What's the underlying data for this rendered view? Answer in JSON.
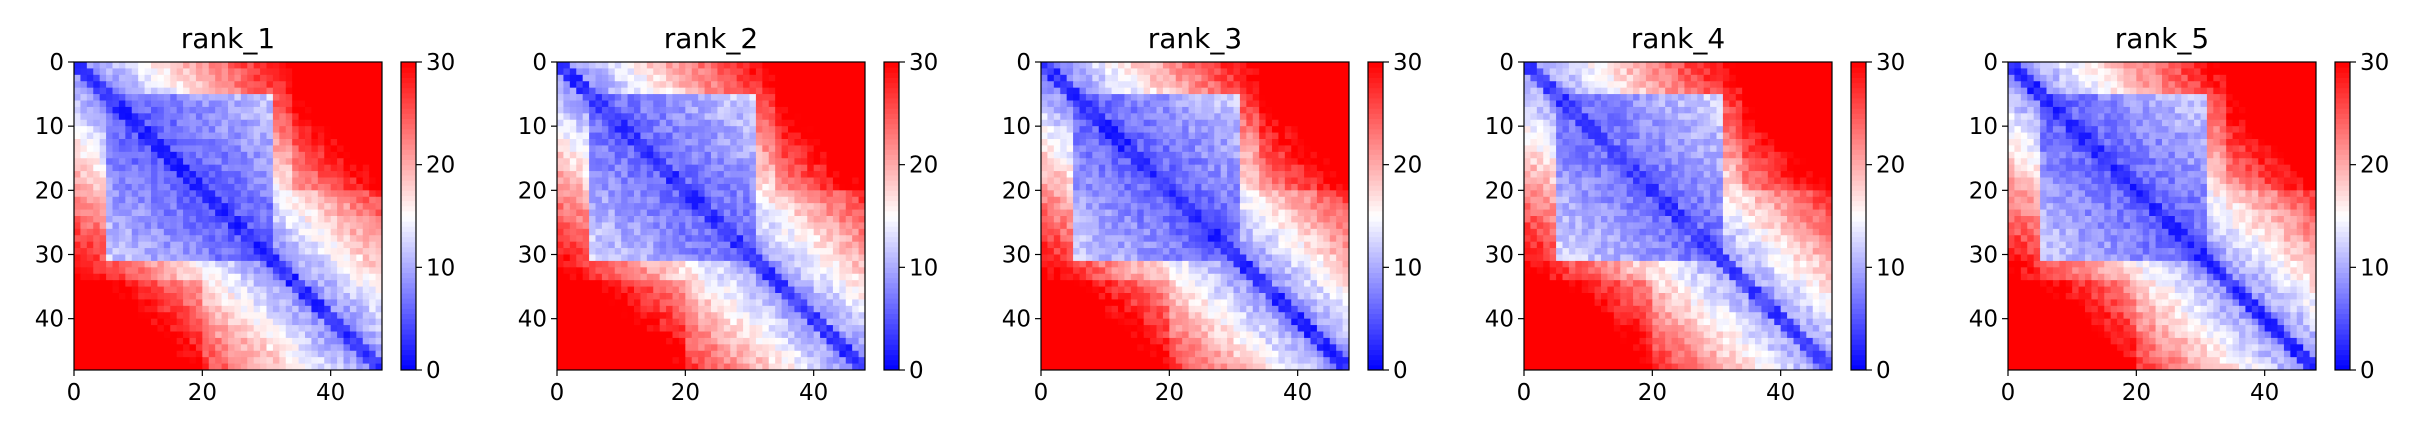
{
  "chart_data": [
    {
      "type": "heatmap",
      "title": "rank_1",
      "n": 48,
      "xlim": [
        0,
        48
      ],
      "ylim": [
        48,
        0
      ],
      "xticks": [
        0,
        20,
        40
      ],
      "yticks": [
        0,
        10,
        20,
        30,
        40
      ],
      "colorbar": {
        "colormap": "bwr",
        "range": [
          0,
          30
        ],
        "ticks": [
          0,
          10,
          20,
          30
        ]
      },
      "variant": 0
    },
    {
      "type": "heatmap",
      "title": "rank_2",
      "n": 48,
      "xlim": [
        0,
        48
      ],
      "ylim": [
        48,
        0
      ],
      "xticks": [
        0,
        20,
        40
      ],
      "yticks": [
        0,
        10,
        20,
        30,
        40
      ],
      "colorbar": {
        "colormap": "bwr",
        "range": [
          0,
          30
        ],
        "ticks": [
          0,
          10,
          20,
          30
        ]
      },
      "variant": 1
    },
    {
      "type": "heatmap",
      "title": "rank_3",
      "n": 48,
      "xlim": [
        0,
        48
      ],
      "ylim": [
        48,
        0
      ],
      "xticks": [
        0,
        20,
        40
      ],
      "yticks": [
        0,
        10,
        20,
        30,
        40
      ],
      "colorbar": {
        "colormap": "bwr",
        "range": [
          0,
          30
        ],
        "ticks": [
          0,
          10,
          20,
          30
        ]
      },
      "variant": 2
    },
    {
      "type": "heatmap",
      "title": "rank_4",
      "n": 48,
      "xlim": [
        0,
        48
      ],
      "ylim": [
        48,
        0
      ],
      "xticks": [
        0,
        20,
        40
      ],
      "yticks": [
        0,
        10,
        20,
        30,
        40
      ],
      "colorbar": {
        "colormap": "bwr",
        "range": [
          0,
          30
        ],
        "ticks": [
          0,
          10,
          20,
          30
        ]
      },
      "variant": 3
    },
    {
      "type": "heatmap",
      "title": "rank_5",
      "n": 48,
      "xlim": [
        0,
        48
      ],
      "ylim": [
        48,
        0
      ],
      "xticks": [
        0,
        20,
        40
      ],
      "yticks": [
        0,
        10,
        20,
        30,
        40
      ],
      "colorbar": {
        "colormap": "bwr",
        "range": [
          0,
          30
        ],
        "ticks": [
          0,
          10,
          20,
          30
        ]
      },
      "variant": 4
    }
  ]
}
